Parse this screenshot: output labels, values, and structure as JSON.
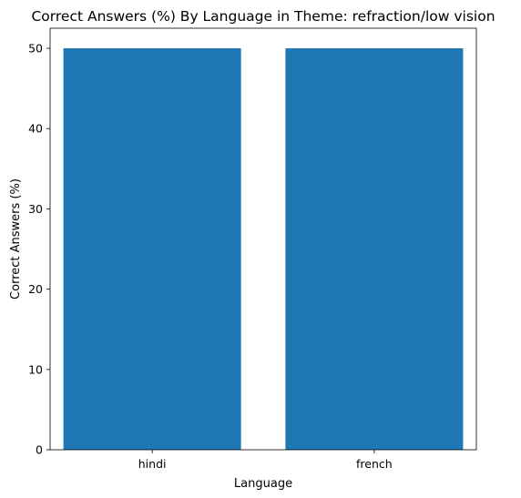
{
  "chart_data": {
    "type": "bar",
    "title": "Correct Answers (%) By Language in Theme: refraction/low vision",
    "xlabel": "Language",
    "ylabel": "Correct Answers (%)",
    "categories": [
      "hindi",
      "french"
    ],
    "values": [
      50,
      50
    ],
    "ylim": [
      0,
      52.5
    ],
    "yticks": [
      0,
      10,
      20,
      30,
      40,
      50
    ],
    "grid": false,
    "legend": "none",
    "bar_color": "#1f77b4"
  }
}
